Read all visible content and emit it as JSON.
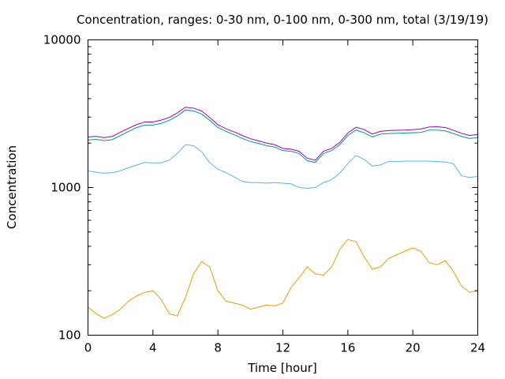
{
  "chart_data": {
    "type": "line",
    "title": "Concentration, ranges: 0-30 nm, 0-100 nm, 0-300 nm, total (3/19/19)",
    "xlabel": "Time [hour]",
    "ylabel": "Concentration",
    "xlim": [
      0,
      24
    ],
    "ylim": [
      100,
      10000
    ],
    "yscale": "log",
    "grid": false,
    "x_ticks": [
      0,
      4,
      8,
      12,
      16,
      20,
      24
    ],
    "x_tick_labels": [
      "0",
      "4",
      "8",
      "12",
      "16",
      "20",
      "24"
    ],
    "y_ticks": [
      100,
      1000,
      10000
    ],
    "y_tick_labels": [
      "100",
      "1000",
      "10000"
    ],
    "x": [
      0,
      0.5,
      1,
      1.5,
      2,
      2.5,
      3,
      3.5,
      4,
      4.5,
      5,
      5.5,
      6,
      6.5,
      7,
      7.5,
      8,
      8.5,
      9,
      9.5,
      10,
      10.5,
      11,
      11.5,
      12,
      12.5,
      13,
      13.5,
      14,
      14.5,
      15,
      15.5,
      16,
      16.5,
      17,
      17.5,
      18,
      18.5,
      19,
      19.5,
      20,
      20.5,
      21,
      21.5,
      22,
      22.5,
      23,
      23.5,
      24
    ],
    "series": [
      {
        "color": "#e69f00",
        "values": [
          155,
          140,
          130,
          138,
          150,
          170,
          185,
          195,
          200,
          175,
          140,
          135,
          180,
          260,
          315,
          290,
          200,
          170,
          165,
          160,
          150,
          155,
          160,
          158,
          165,
          210,
          245,
          290,
          260,
          255,
          290,
          380,
          445,
          430,
          340,
          280,
          290,
          330,
          350,
          370,
          390,
          370,
          310,
          300,
          320,
          270,
          215,
          195,
          200
        ]
      },
      {
        "color": "#56b4e9",
        "values": [
          1300,
          1270,
          1250,
          1260,
          1300,
          1360,
          1420,
          1480,
          1470,
          1470,
          1530,
          1700,
          1950,
          1920,
          1750,
          1470,
          1330,
          1260,
          1180,
          1100,
          1080,
          1080,
          1070,
          1080,
          1070,
          1060,
          1000,
          990,
          1000,
          1080,
          1130,
          1250,
          1450,
          1650,
          1550,
          1400,
          1420,
          1500,
          1500,
          1510,
          1510,
          1510,
          1510,
          1500,
          1490,
          1450,
          1200,
          1170,
          1190
        ]
      },
      {
        "color": "#009e73",
        "values": [
          2100,
          2120,
          2080,
          2110,
          2250,
          2400,
          2550,
          2650,
          2650,
          2720,
          2850,
          3050,
          3350,
          3300,
          3150,
          2850,
          2550,
          2400,
          2280,
          2150,
          2050,
          1990,
          1920,
          1880,
          1780,
          1760,
          1700,
          1520,
          1480,
          1700,
          1780,
          1950,
          2250,
          2450,
          2350,
          2200,
          2300,
          2320,
          2330,
          2340,
          2350,
          2360,
          2450,
          2450,
          2420,
          2320,
          2220,
          2150,
          2180
        ]
      },
      {
        "color": "#9400d3",
        "values": [
          2200,
          2220,
          2180,
          2220,
          2370,
          2520,
          2670,
          2780,
          2780,
          2860,
          2980,
          3200,
          3500,
          3450,
          3300,
          2980,
          2660,
          2500,
          2380,
          2250,
          2140,
          2070,
          2000,
          1950,
          1840,
          1820,
          1760,
          1580,
          1530,
          1760,
          1840,
          2020,
          2340,
          2560,
          2470,
          2300,
          2400,
          2430,
          2440,
          2450,
          2470,
          2490,
          2570,
          2580,
          2550,
          2440,
          2330,
          2250,
          2290
        ]
      }
    ]
  }
}
